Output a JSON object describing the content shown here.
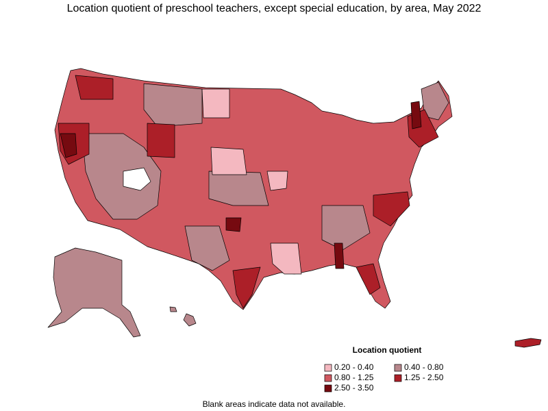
{
  "title": "Location quotient of preschool teachers, except special education, by area, May 2022",
  "legend": {
    "title": "Location quotient",
    "items": [
      {
        "label": "0.20 - 0.40",
        "color": "#f4b8c0"
      },
      {
        "label": "0.40 - 0.80",
        "color": "#b8878c"
      },
      {
        "label": "0.80 - 1.25",
        "color": "#d05860"
      },
      {
        "label": "1.25 - 2.50",
        "color": "#ac1f28"
      },
      {
        "label": "2.50 - 3.50",
        "color": "#760a10"
      }
    ]
  },
  "note": "Blank areas indicate data not available."
}
